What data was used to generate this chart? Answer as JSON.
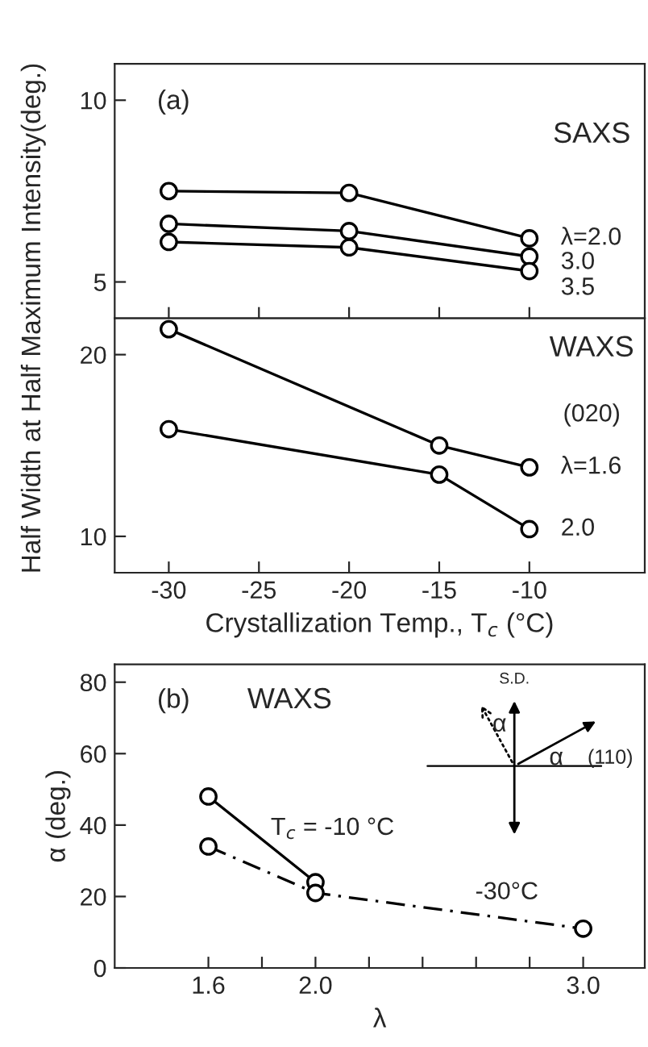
{
  "chart_data": [
    {
      "type": "line",
      "ylabel": "Half Width at Half Maximum Intensity(deg.)",
      "annotations": [
        "(a)",
        "SAXS"
      ],
      "x": [
        -30,
        -20,
        -10
      ],
      "xlim": [
        -33,
        -3.6
      ],
      "xticks": [
        {
          "value": -30,
          "label": null
        },
        {
          "value": -25,
          "label": null
        },
        {
          "value": -20,
          "label": null
        },
        {
          "value": -15,
          "label": null
        },
        {
          "value": -10,
          "label": null
        }
      ],
      "ylim": [
        4,
        11
      ],
      "yticks": [
        5,
        10
      ],
      "tick_labels": "y",
      "marker": "circle",
      "grid": false,
      "legend": false,
      "series": [
        {
          "name": "λ=2.0",
          "color": "#000000",
          "values": [
            7.5,
            7.45,
            6.2
          ]
        },
        {
          "name": "3.0",
          "color": "#000000",
          "values": [
            6.6,
            6.4,
            5.7
          ]
        },
        {
          "name": "3.5",
          "color": "#000000",
          "values": [
            6.1,
            5.95,
            5.3
          ]
        }
      ]
    },
    {
      "type": "line",
      "xlabel": "Crystallization Temp., T$_{c}$ (°C)",
      "annotations": [
        "WAXS",
        "(020)"
      ],
      "xlim": [
        -33,
        -3.6
      ],
      "xticks": [
        -30,
        -25,
        -20,
        -15,
        -10
      ],
      "ylim": [
        8,
        22
      ],
      "yticks": [
        10,
        20
      ],
      "marker": "circle",
      "grid": false,
      "legend": false,
      "series": [
        {
          "name": "λ=1.6",
          "color": "#000000",
          "x": [
            -30,
            -15,
            -10
          ],
          "values": [
            21.4,
            15.0,
            13.8
          ]
        },
        {
          "name": "2.0",
          "color": "#000000",
          "x": [
            -30,
            -15,
            -10
          ],
          "values": [
            15.9,
            13.4,
            10.4
          ]
        }
      ]
    },
    {
      "type": "line",
      "xlabel": "λ",
      "ylabel": "α (deg.)",
      "annotations": [
        "(b)",
        "WAXS",
        "S.D.",
        "α",
        "α",
        "(110)"
      ],
      "xlim": [
        1.25,
        3.23
      ],
      "xticks": [
        1.6,
        {
          "value": 1.8,
          "label": null
        },
        {
          "value": 2,
          "label": "2.0"
        },
        {
          "value": 2.2,
          "label": null
        },
        {
          "value": 2.4,
          "label": null
        },
        {
          "value": 2.6,
          "label": null
        },
        {
          "value": 2.8,
          "label": null
        },
        {
          "value": 3,
          "label": "3.0"
        }
      ],
      "ylim": [
        0,
        85
      ],
      "yticks": [
        0,
        20,
        40,
        60,
        80
      ],
      "marker": "circle",
      "grid": false,
      "legend": false,
      "series": [
        {
          "name": "T$_{c}$ = -10 °C",
          "color": "#000000",
          "line_style": "solid",
          "x": [
            1.6,
            2.0
          ],
          "values": [
            48,
            24
          ]
        },
        {
          "name": "-30°C",
          "color": "#000000",
          "line_style": "dashed",
          "x": [
            1.6,
            2.0,
            3.0
          ],
          "values": [
            34,
            21,
            11
          ]
        }
      ]
    }
  ]
}
